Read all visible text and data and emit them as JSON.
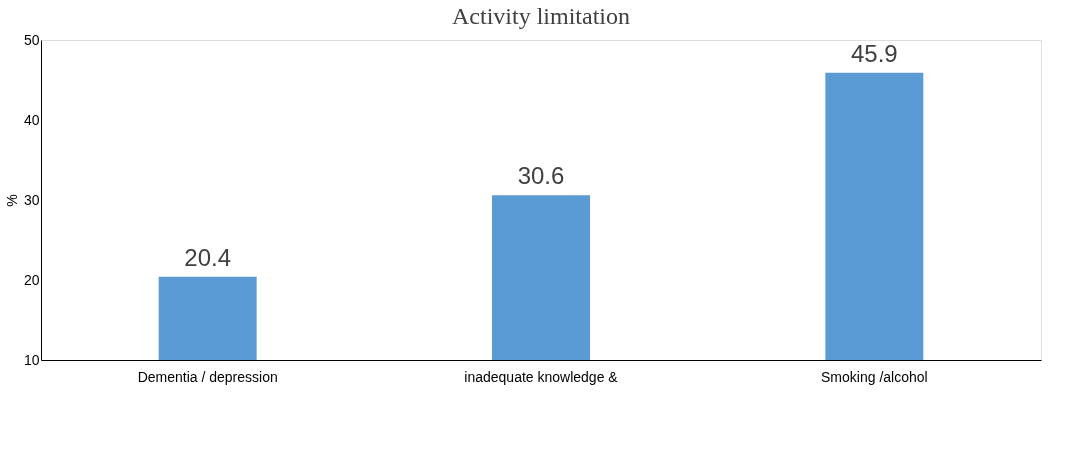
{
  "chart_data": {
    "type": "bar",
    "title": "Activity limitation",
    "ylabel": "%",
    "categories": [
      "Dementia / depression",
      "inadequate knowledge &",
      "Smoking /alcohol"
    ],
    "values": [
      20.4,
      30.6,
      45.9
    ],
    "color": "#5b9bd5",
    "ylim": [
      10,
      50
    ],
    "yticks": [
      10,
      20,
      30,
      40,
      50
    ],
    "grid": false,
    "data_labels": true
  }
}
